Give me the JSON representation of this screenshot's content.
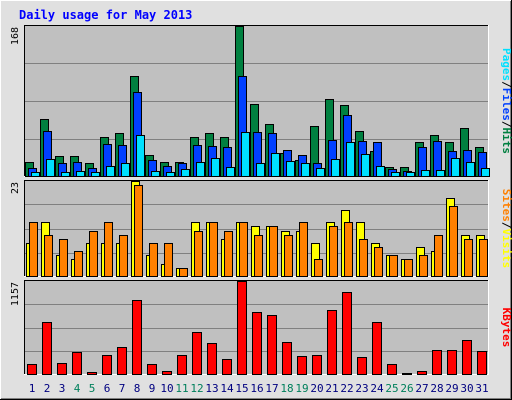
{
  "title": "Daily usage for May 2013",
  "colors": {
    "background": "#e0e0e0",
    "plot_bg": "#c0c0c0",
    "gridline": "#808080",
    "title_text": "#0000ff",
    "hits": "#008040",
    "files": "#0040ff",
    "pages": "#00e0ff",
    "visits": "#ffff00",
    "sites": "#ff8000",
    "kbytes": "#ff0000",
    "weekend_label": "#00805c",
    "weekday_label": "#000080",
    "slash": "#000000"
  },
  "chart_data": [
    {
      "type": "bar",
      "name": "hits-files-pages",
      "ymax_label": "168",
      "ylim": [
        0,
        168
      ],
      "right_label_parts": [
        "Pages",
        "Files",
        "Hits"
      ],
      "categories": [
        "1",
        "2",
        "3",
        "4",
        "5",
        "6",
        "7",
        "8",
        "9",
        "10",
        "11",
        "12",
        "13",
        "14",
        "15",
        "16",
        "17",
        "18",
        "19",
        "20",
        "21",
        "22",
        "23",
        "24",
        "25",
        "26",
        "27",
        "28",
        "29",
        "30",
        "31"
      ],
      "weekend": [
        false,
        false,
        false,
        true,
        true,
        false,
        false,
        false,
        false,
        false,
        true,
        true,
        false,
        false,
        false,
        false,
        false,
        true,
        true,
        false,
        false,
        false,
        false,
        false,
        true,
        true,
        false,
        false,
        false,
        false,
        false
      ],
      "series": [
        {
          "name": "Hits",
          "values": [
            16,
            64,
            22,
            22,
            15,
            44,
            48,
            112,
            24,
            16,
            16,
            44,
            48,
            44,
            168,
            81,
            58,
            26,
            18,
            56,
            86,
            80,
            50,
            28,
            10,
            10,
            38,
            46,
            38,
            54,
            32
          ]
        },
        {
          "name": "Files",
          "values": [
            9,
            50,
            14,
            16,
            9,
            36,
            35,
            94,
            18,
            11,
            14,
            35,
            34,
            33,
            112,
            49,
            48,
            29,
            24,
            15,
            40,
            68,
            39,
            38,
            8,
            6,
            32,
            39,
            28,
            29,
            27
          ]
        },
        {
          "name": "Pages",
          "values": [
            5,
            19,
            4,
            6,
            5,
            11,
            15,
            46,
            6,
            4,
            8,
            16,
            20,
            10,
            49,
            15,
            26,
            17,
            15,
            9,
            19,
            38,
            25,
            11,
            5,
            4,
            7,
            7,
            20,
            16,
            9
          ]
        }
      ]
    },
    {
      "type": "bar",
      "name": "visits-sites",
      "ymax_label": "23",
      "ylim": [
        0,
        23
      ],
      "right_label_parts": [
        "Sites",
        "Visits"
      ],
      "categories": [
        "1",
        "2",
        "3",
        "4",
        "5",
        "6",
        "7",
        "8",
        "9",
        "10",
        "11",
        "12",
        "13",
        "14",
        "15",
        "16",
        "17",
        "18",
        "19",
        "20",
        "21",
        "22",
        "23",
        "24",
        "25",
        "26",
        "27",
        "28",
        "29",
        "30",
        "31"
      ],
      "series": [
        {
          "name": "Visits",
          "values": [
            8,
            13,
            5,
            4,
            8,
            8,
            8,
            23,
            5,
            3,
            2,
            13,
            13,
            9,
            13,
            12,
            12,
            11,
            11,
            8,
            13,
            16,
            13,
            8,
            5,
            4,
            7,
            6,
            19,
            10,
            10
          ]
        },
        {
          "name": "Sites",
          "values": [
            13,
            10,
            9,
            6,
            11,
            13,
            10,
            22,
            8,
            8,
            2,
            11,
            13,
            11,
            13,
            10,
            12,
            10,
            13,
            4,
            12,
            13,
            9,
            7,
            5,
            4,
            5,
            10,
            17,
            9,
            9
          ]
        }
      ]
    },
    {
      "type": "bar",
      "name": "kbytes",
      "ymax_label": "1157",
      "ylim": [
        0,
        1157
      ],
      "right_label_parts": [
        "KBytes"
      ],
      "categories": [
        "1",
        "2",
        "3",
        "4",
        "5",
        "6",
        "7",
        "8",
        "9",
        "10",
        "11",
        "12",
        "13",
        "14",
        "15",
        "16",
        "17",
        "18",
        "19",
        "20",
        "21",
        "22",
        "23",
        "24",
        "25",
        "26",
        "27",
        "28",
        "29",
        "30",
        "31"
      ],
      "series": [
        {
          "name": "KBytes",
          "values": [
            120,
            650,
            140,
            270,
            30,
            240,
            340,
            920,
            130,
            40,
            240,
            520,
            380,
            190,
            1157,
            770,
            740,
            400,
            230,
            240,
            800,
            1020,
            210,
            650,
            120,
            10,
            40,
            300,
            300,
            420,
            280
          ]
        }
      ]
    }
  ]
}
